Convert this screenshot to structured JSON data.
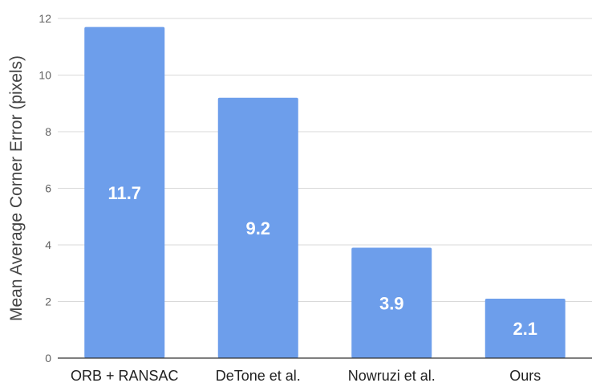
{
  "chart_data": {
    "type": "bar",
    "categories": [
      "ORB + RANSAC",
      "DeTone et al.",
      "Nowruzi et al.",
      "Ours"
    ],
    "values": [
      11.7,
      9.2,
      3.9,
      2.1
    ],
    "data_labels": [
      "11.7",
      "9.2",
      "3.9",
      "2.1"
    ],
    "title": "",
    "xlabel": "",
    "ylabel": "Mean Average Corner Error (pixels)",
    "ylim": [
      0,
      12
    ],
    "yticks": [
      0,
      2,
      4,
      6,
      8,
      10,
      12
    ],
    "grid": true,
    "legend": "none",
    "bar_color": "#6d9eeb",
    "grid_color": "#d9d9d9",
    "axis_color": "#333333"
  }
}
